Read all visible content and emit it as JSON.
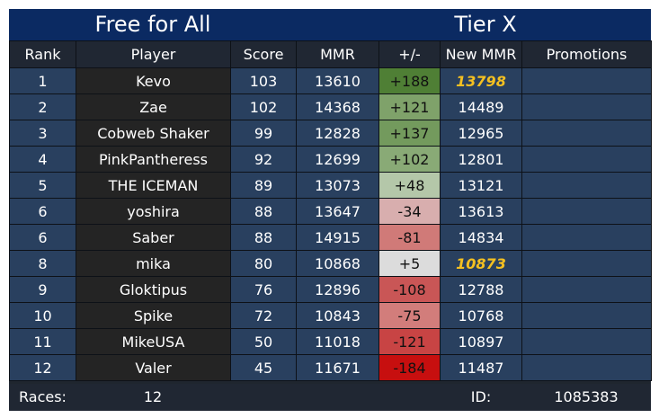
{
  "header": {
    "mode": "Free for All",
    "tier": "Tier X"
  },
  "columns": [
    "Rank",
    "Player",
    "Score",
    "MMR",
    "+/-",
    "New MMR",
    "Promotions"
  ],
  "rows": [
    {
      "rank": "1",
      "player": "Kevo",
      "score": "103",
      "mmr": "13610",
      "delta": "+188",
      "new_mmr": "13798",
      "promoted": true,
      "delta_color": "#4f7f35",
      "promotion": ""
    },
    {
      "rank": "2",
      "player": "Zae",
      "score": "102",
      "mmr": "14368",
      "delta": "+121",
      "new_mmr": "14489",
      "promoted": false,
      "delta_color": "#7fa26a",
      "promotion": ""
    },
    {
      "rank": "3",
      "player": "Cobweb Shaker",
      "score": "99",
      "mmr": "12828",
      "delta": "+137",
      "new_mmr": "12965",
      "promoted": false,
      "delta_color": "#739a5d",
      "promotion": ""
    },
    {
      "rank": "4",
      "player": "PinkPantheress",
      "score": "92",
      "mmr": "12699",
      "delta": "+102",
      "new_mmr": "12801",
      "promoted": false,
      "delta_color": "#89aa76",
      "promotion": ""
    },
    {
      "rank": "5",
      "player": "THE ICEMAN",
      "score": "89",
      "mmr": "13073",
      "delta": "+48",
      "new_mmr": "13121",
      "promoted": false,
      "delta_color": "#b4c7a9",
      "promotion": ""
    },
    {
      "rank": "6",
      "player": "yoshira",
      "score": "88",
      "mmr": "13647",
      "delta": "-34",
      "new_mmr": "13613",
      "promoted": false,
      "delta_color": "#d8aeae",
      "promotion": ""
    },
    {
      "rank": "6",
      "player": "Saber",
      "score": "88",
      "mmr": "14915",
      "delta": "-81",
      "new_mmr": "14834",
      "promoted": false,
      "delta_color": "#d07a78",
      "promotion": ""
    },
    {
      "rank": "8",
      "player": "mika",
      "score": "80",
      "mmr": "10868",
      "delta": "+5",
      "new_mmr": "10873",
      "promoted": true,
      "delta_color": "#dcdcdc",
      "promotion": ""
    },
    {
      "rank": "9",
      "player": "Gloktipus",
      "score": "76",
      "mmr": "12896",
      "delta": "-108",
      "new_mmr": "12788",
      "promoted": false,
      "delta_color": "#c95656",
      "promotion": ""
    },
    {
      "rank": "10",
      "player": "Spike",
      "score": "72",
      "mmr": "10843",
      "delta": "-75",
      "new_mmr": "10768",
      "promoted": false,
      "delta_color": "#d27d7b",
      "promotion": ""
    },
    {
      "rank": "11",
      "player": "MikeUSA",
      "score": "50",
      "mmr": "11018",
      "delta": "-121",
      "new_mmr": "10897",
      "promoted": false,
      "delta_color": "#c84444",
      "promotion": ""
    },
    {
      "rank": "12",
      "player": "Valer",
      "score": "45",
      "mmr": "11671",
      "delta": "-184",
      "new_mmr": "11487",
      "promoted": false,
      "delta_color": "#c70f0f",
      "promotion": ""
    }
  ],
  "footer": {
    "races_label": "Races:",
    "races_value": "12",
    "id_label": "ID:",
    "id_value": "1085383"
  },
  "colors": {
    "title_bar": "#0b2a62",
    "header_row": "#202733",
    "blue_cell": "#29405f",
    "player_cell": "#242424",
    "promoted_text": "#f4c021"
  }
}
